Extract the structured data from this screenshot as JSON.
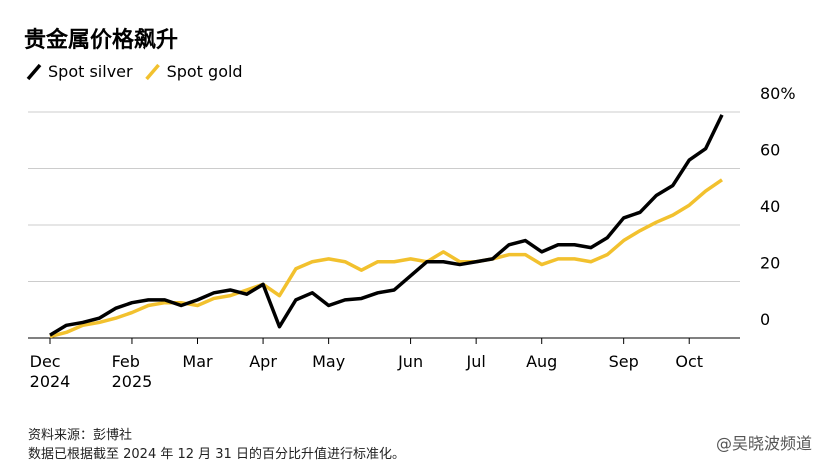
{
  "chart_data": {
    "type": "line",
    "title": "贵金属价格飙升",
    "categories": [
      "Dec\n2024",
      null,
      null,
      null,
      null,
      "Feb\n2025",
      null,
      null,
      null,
      "Mar",
      null,
      null,
      null,
      "Apr",
      null,
      null,
      null,
      "May",
      null,
      null,
      null,
      null,
      "Jun",
      null,
      null,
      null,
      "Jul",
      null,
      null,
      null,
      "Aug",
      null,
      null,
      null,
      null,
      "Sep",
      null,
      null,
      null,
      "Oct",
      null,
      null
    ],
    "series": [
      {
        "name": "Spot silver",
        "color": "#000000",
        "values": [
          1,
          4.5,
          5.5,
          7,
          10.5,
          12.5,
          13.5,
          13.5,
          11.5,
          13.5,
          16,
          17,
          15.5,
          19,
          4,
          13.5,
          16,
          11.5,
          13.5,
          14,
          16,
          17,
          22,
          27,
          27,
          26,
          27,
          28,
          33,
          34.5,
          30.5,
          33,
          33,
          32,
          35.5,
          42.5,
          44.5,
          50.5,
          54,
          63,
          67,
          79
        ]
      },
      {
        "name": "Spot gold",
        "color": "#f2c12e",
        "values": [
          0.5,
          2,
          4.5,
          5.5,
          7,
          9,
          11.5,
          12.5,
          12.5,
          11.5,
          14,
          15,
          17,
          19,
          15,
          24.5,
          27,
          28,
          27,
          24,
          27,
          27,
          28,
          27,
          30.5,
          27,
          27,
          28,
          29.5,
          29.5,
          26,
          28,
          28,
          27,
          29.5,
          34.5,
          38,
          41,
          43.5,
          47,
          52,
          56
        ]
      }
    ],
    "ylim": [
      0,
      80
    ],
    "yticks": [
      0,
      20,
      40,
      60,
      {
        "value": 80,
        "label": "80%"
      }
    ],
    "grid": true,
    "source": "资料来源：彭博社",
    "note": "数据已根据截至 2024 年 12 月 31 日的百分比升值进行标准化。",
    "watermark": "@吴晓波频道"
  }
}
